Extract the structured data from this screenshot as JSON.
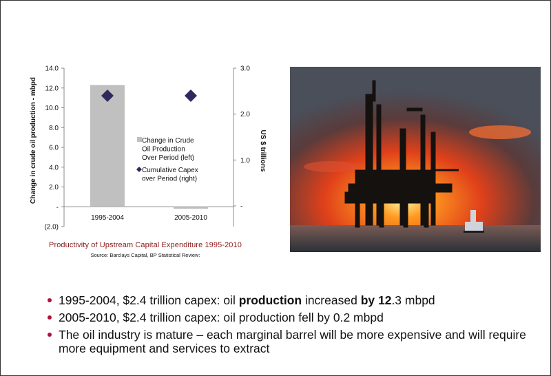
{
  "chart_data": {
    "type": "bar",
    "categories": [
      "1995-2004",
      "2005-2010"
    ],
    "series": [
      {
        "name": "Change in Crude Oil Production Over Period (left)",
        "kind": "bar",
        "axis": "left",
        "values": [
          12.3,
          -0.2
        ],
        "color": "#c0c0c0"
      },
      {
        "name": "Cumulative Capex over Period (right)",
        "kind": "marker",
        "axis": "right",
        "values": [
          2.4,
          2.4
        ],
        "color": "#2e2a5e"
      }
    ],
    "ylabel": "Change in crude oil production - mbpd",
    "y2label": "US $ trillions",
    "ylim": [
      -2,
      14
    ],
    "y2lim": [
      0,
      3
    ],
    "yticks": [
      "(2.0)",
      "-",
      "2.0",
      "4.0",
      "6.0",
      "8.0",
      "10.0",
      "12.0",
      "14.0"
    ],
    "y2ticks": [
      "-",
      "1.0",
      "2.0",
      "3.0"
    ],
    "legend": {
      "bar_lines": [
        "Change in Crude",
        "Oil Production",
        "Over Period (left)"
      ],
      "marker_lines": [
        "Cumulative Capex",
        "over Period (right)"
      ],
      "placement": "center"
    }
  },
  "caption": "Productivity of Upstream Capital Expenditure 1995-2010",
  "source": "Source: Barclays Capital, BP Statistical Review:",
  "bullets": [
    {
      "a": "1995-2004, $2.4 trillion capex: oil ",
      "b": "production",
      "c": " increased  ",
      "d": "by 12",
      "e": ".3 mbpd"
    },
    {
      "a": "2005-2010, $2.4 trillion capex: oil production fell by 0.2 mbpd"
    },
    {
      "a": "The oil industry is mature – each marginal barrel will be more expensive and will require more equipment and services to extract"
    }
  ],
  "colors": {
    "bullet": "#b0103a",
    "caption": "#8b1a1a",
    "bar": "#c0c0c0",
    "marker": "#2e2a5e"
  },
  "photo": {
    "icon": "offshore-oil-rig-sunset-photo"
  }
}
